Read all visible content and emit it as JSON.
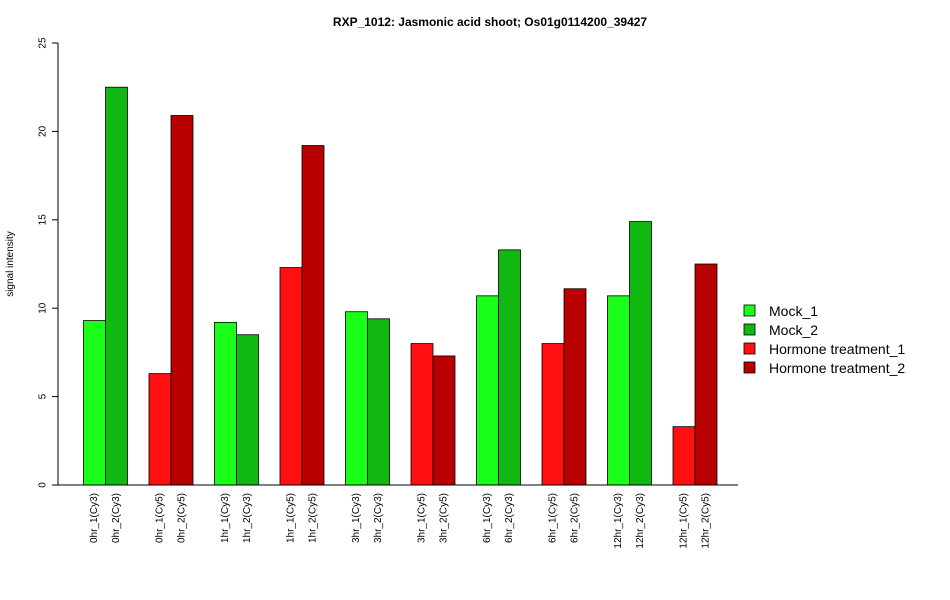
{
  "chart_data": {
    "type": "bar",
    "title": "RXP_1012: Jasmonic acid shoot; Os01g0114200_39427",
    "xlabel": "",
    "ylabel": "signal intensity",
    "ylim": [
      0,
      25
    ],
    "yticks": [
      0,
      5,
      10,
      15,
      20,
      25
    ],
    "grid": false,
    "legend_position": "right",
    "legend": [
      {
        "name": "Mock_1",
        "color": "#1aff1a"
      },
      {
        "name": "Mock_2",
        "color": "#12b812"
      },
      {
        "name": "Hormone treatment_1",
        "color": "#ff0f0f"
      },
      {
        "name": "Hormone treatment_2",
        "color": "#b80000"
      }
    ],
    "groups": [
      {
        "bars": [
          {
            "label": "0hr_1(Cy3)",
            "value": 9.3,
            "series": 0
          },
          {
            "label": "0hr_2(Cy3)",
            "value": 22.5,
            "series": 1
          }
        ]
      },
      {
        "bars": [
          {
            "label": "0hr_1(Cy5)",
            "value": 6.3,
            "series": 2
          },
          {
            "label": "0hr_2(Cy5)",
            "value": 20.9,
            "series": 3
          }
        ]
      },
      {
        "bars": [
          {
            "label": "1hr_1(Cy3)",
            "value": 9.2,
            "series": 0
          },
          {
            "label": "1hr_2(Cy3)",
            "value": 8.5,
            "series": 1
          }
        ]
      },
      {
        "bars": [
          {
            "label": "1hr_1(Cy5)",
            "value": 12.3,
            "series": 2
          },
          {
            "label": "1hr_2(Cy5)",
            "value": 19.2,
            "series": 3
          }
        ]
      },
      {
        "bars": [
          {
            "label": "3hr_1(Cy3)",
            "value": 9.8,
            "series": 0
          },
          {
            "label": "3hr_2(Cy3)",
            "value": 9.4,
            "series": 1
          }
        ]
      },
      {
        "bars": [
          {
            "label": "3hr_1(Cy5)",
            "value": 8.0,
            "series": 2
          },
          {
            "label": "3hr_2(Cy5)",
            "value": 7.3,
            "series": 3
          }
        ]
      },
      {
        "bars": [
          {
            "label": "6hr_1(Cy3)",
            "value": 10.7,
            "series": 0
          },
          {
            "label": "6hr_2(Cy3)",
            "value": 13.3,
            "series": 1
          }
        ]
      },
      {
        "bars": [
          {
            "label": "6hr_1(Cy5)",
            "value": 8.0,
            "series": 2
          },
          {
            "label": "6hr_2(Cy5)",
            "value": 11.1,
            "series": 3
          }
        ]
      },
      {
        "bars": [
          {
            "label": "12hr_1(Cy3)",
            "value": 10.7,
            "series": 0
          },
          {
            "label": "12hr_2(Cy3)",
            "value": 14.9,
            "series": 1
          }
        ]
      },
      {
        "bars": [
          {
            "label": "12hr_1(Cy5)",
            "value": 3.3,
            "series": 2
          },
          {
            "label": "12hr_2(Cy5)",
            "value": 12.5,
            "series": 3
          }
        ]
      }
    ]
  }
}
